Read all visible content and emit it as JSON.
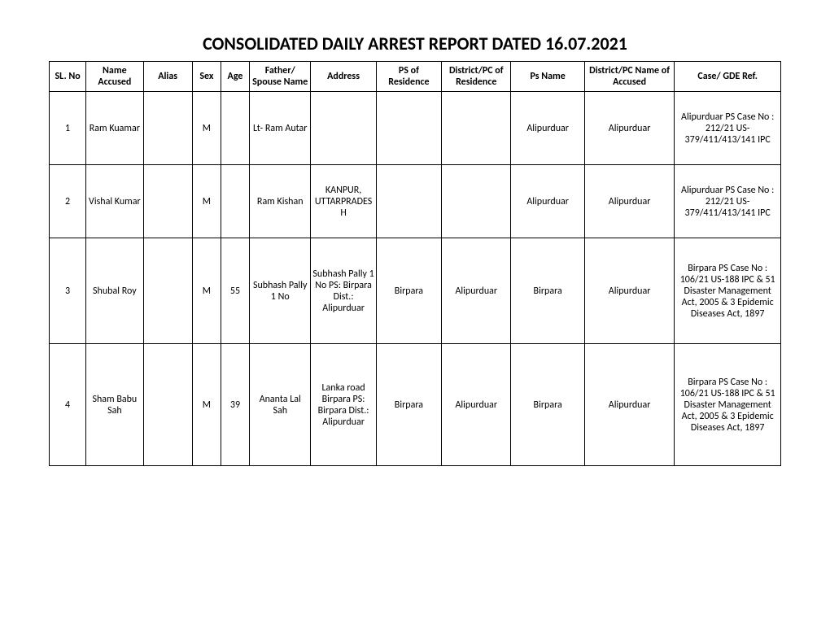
{
  "title": "CONSOLIDATED DAILY ARREST REPORT DATED 16.07.2021",
  "columns": [
    "SL. No",
    "Name Accused",
    "Alias",
    "Sex",
    "Age",
    "Father/ Spouse Name",
    "Address",
    "PS of Residence",
    "District/PC of Residence",
    "Ps Name",
    "District/PC Name of Accused",
    "Case/ GDE Ref."
  ],
  "rows": [
    {
      "slno": "1",
      "name": "Ram Kuamar",
      "alias": "",
      "sex": "M",
      "age": "",
      "father": "Lt- Ram Autar",
      "address": "",
      "psres": "",
      "district": "",
      "psname": "Alipurduar",
      "pcaccused": "Alipurduar",
      "caseref": "Alipurduar PS Case No : 212/21 US-379/411/413/141 IPC"
    },
    {
      "slno": "2",
      "name": "Vishal Kumar",
      "alias": "",
      "sex": "M",
      "age": "",
      "father": "Ram Kishan",
      "address": "KANPUR, UTTARPRADESH",
      "psres": "",
      "district": "",
      "psname": "Alipurduar",
      "pcaccused": "Alipurduar",
      "caseref": "Alipurduar PS Case No : 212/21 US-379/411/413/141 IPC"
    },
    {
      "slno": "3",
      "name": "Shubal Roy",
      "alias": "",
      "sex": "M",
      "age": "55",
      "father": "Subhash Pally 1 No",
      "address": "Subhash Pally 1 No PS: Birpara Dist.: Alipurduar",
      "psres": "Birpara",
      "district": "Alipurduar",
      "psname": "Birpara",
      "pcaccused": "Alipurduar",
      "caseref": "Birpara PS Case No : 106/21 US-188 IPC &  51 Disaster Management Act, 2005 & 3 Epidemic Diseases Act, 1897"
    },
    {
      "slno": "4",
      "name": "Sham Babu Sah",
      "alias": "",
      "sex": "M",
      "age": "39",
      "father": "Ananta Lal Sah",
      "address": "Lanka road Birpara PS: Birpara Dist.: Alipurduar",
      "psres": "Birpara",
      "district": "Alipurduar",
      "psname": "Birpara",
      "pcaccused": "Alipurduar",
      "caseref": "Birpara PS Case No : 106/21 US-188 IPC &  51 Disaster Management Act, 2005 & 3 Epidemic Diseases Act, 1897"
    }
  ]
}
